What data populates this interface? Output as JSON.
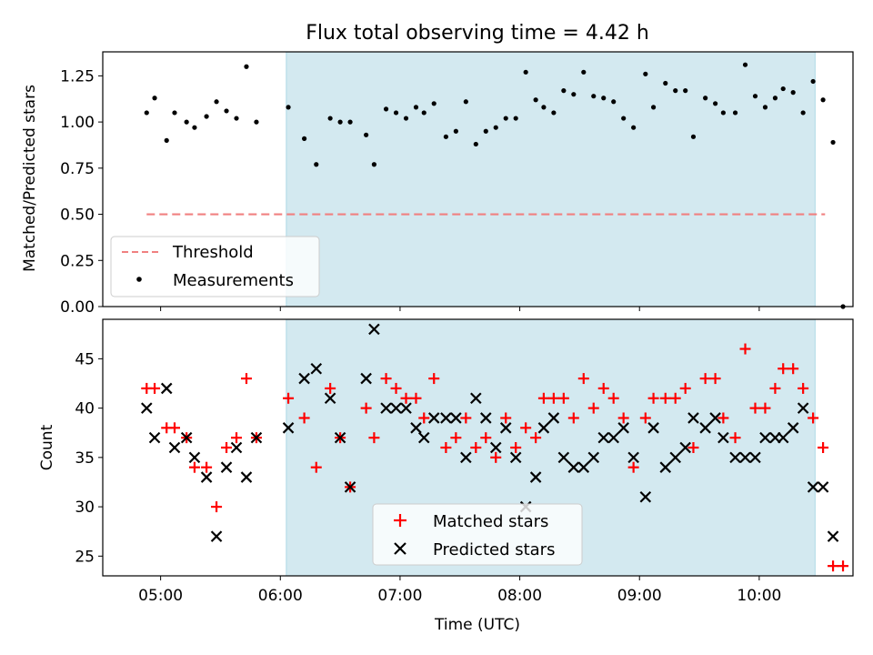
{
  "chart_data": [
    {
      "type": "scatter",
      "title": "Flux total observing time = 4.42 h",
      "ylabel": "Matched/Predicted stars",
      "xlim": [
        "04:31",
        "10:47"
      ],
      "ylim": [
        0,
        1.38
      ],
      "yticks": [
        0.0,
        0.25,
        0.5,
        0.75,
        1.0,
        1.25
      ],
      "ytick_labels": [
        "0.00",
        "0.25",
        "0.50",
        "0.75",
        "1.00",
        "1.25"
      ],
      "shaded_span": [
        "06:03",
        "10:28"
      ],
      "shade_color": "#d3e9f0",
      "legend": {
        "placement": "lower-left",
        "entries": [
          "Threshold",
          "Measurements"
        ]
      },
      "threshold": {
        "name": "Threshold",
        "value": 0.5,
        "x": [
          "04:53",
          "10:33"
        ],
        "color": "#f08080"
      },
      "series": [
        {
          "name": "Measurements",
          "color": "#000000",
          "points": [
            [
              "04:53",
              1.05
            ],
            [
              "04:57",
              1.13
            ],
            [
              "05:03",
              0.9
            ],
            [
              "05:07",
              1.05
            ],
            [
              "05:13",
              1.0
            ],
            [
              "05:17",
              0.97
            ],
            [
              "05:23",
              1.03
            ],
            [
              "05:28",
              1.11
            ],
            [
              "05:33",
              1.06
            ],
            [
              "05:38",
              1.02
            ],
            [
              "05:43",
              1.3
            ],
            [
              "05:48",
              1.0
            ],
            [
              "06:04",
              1.08
            ],
            [
              "06:12",
              0.91
            ],
            [
              "06:18",
              0.77
            ],
            [
              "06:25",
              1.02
            ],
            [
              "06:30",
              1.0
            ],
            [
              "06:35",
              1.0
            ],
            [
              "06:43",
              0.93
            ],
            [
              "06:47",
              0.77
            ],
            [
              "06:53",
              1.07
            ],
            [
              "06:58",
              1.05
            ],
            [
              "07:03",
              1.02
            ],
            [
              "07:08",
              1.08
            ],
            [
              "07:12",
              1.05
            ],
            [
              "07:17",
              1.1
            ],
            [
              "07:23",
              0.92
            ],
            [
              "07:28",
              0.95
            ],
            [
              "07:33",
              1.11
            ],
            [
              "07:38",
              0.88
            ],
            [
              "07:43",
              0.95
            ],
            [
              "07:48",
              0.97
            ],
            [
              "07:53",
              1.02
            ],
            [
              "07:58",
              1.02
            ],
            [
              "08:03",
              1.27
            ],
            [
              "08:08",
              1.12
            ],
            [
              "08:12",
              1.08
            ],
            [
              "08:17",
              1.05
            ],
            [
              "08:22",
              1.17
            ],
            [
              "08:27",
              1.15
            ],
            [
              "08:32",
              1.27
            ],
            [
              "08:37",
              1.14
            ],
            [
              "08:42",
              1.13
            ],
            [
              "08:47",
              1.11
            ],
            [
              "08:52",
              1.02
            ],
            [
              "08:57",
              0.97
            ],
            [
              "09:03",
              1.26
            ],
            [
              "09:07",
              1.08
            ],
            [
              "09:13",
              1.21
            ],
            [
              "09:18",
              1.17
            ],
            [
              "09:23",
              1.17
            ],
            [
              "09:27",
              0.92
            ],
            [
              "09:33",
              1.13
            ],
            [
              "09:38",
              1.1
            ],
            [
              "09:42",
              1.05
            ],
            [
              "09:48",
              1.05
            ],
            [
              "09:53",
              1.31
            ],
            [
              "09:58",
              1.14
            ],
            [
              "10:03",
              1.08
            ],
            [
              "10:08",
              1.13
            ],
            [
              "10:12",
              1.18
            ],
            [
              "10:17",
              1.16
            ],
            [
              "10:22",
              1.05
            ],
            [
              "10:27",
              1.22
            ],
            [
              "10:32",
              1.12
            ],
            [
              "10:37",
              0.89
            ],
            [
              "10:42",
              0.0
            ]
          ]
        }
      ]
    },
    {
      "type": "scatter",
      "xlabel": "Time (UTC)",
      "ylabel": "Count",
      "xlim": [
        "04:31",
        "10:47"
      ],
      "ylim": [
        23,
        49
      ],
      "xticks": [
        "05:00",
        "06:00",
        "07:00",
        "08:00",
        "09:00",
        "10:00"
      ],
      "xtick_labels": [
        "05:00",
        "06:00",
        "07:00",
        "08:00",
        "09:00",
        "10:00"
      ],
      "yticks": [
        25,
        30,
        35,
        40,
        45
      ],
      "ytick_labels": [
        "25",
        "30",
        "35",
        "40",
        "45"
      ],
      "shaded_span": [
        "06:03",
        "10:28"
      ],
      "shade_color": "#d3e9f0",
      "legend": {
        "placement": "lower-center",
        "entries": [
          "Matched stars",
          "Predicted stars"
        ]
      },
      "series": [
        {
          "name": "Matched stars",
          "marker": "plus",
          "color": "#ff0000",
          "points": [
            [
              "04:53",
              42
            ],
            [
              "04:57",
              42
            ],
            [
              "05:03",
              38
            ],
            [
              "05:07",
              38
            ],
            [
              "05:13",
              37
            ],
            [
              "05:17",
              34
            ],
            [
              "05:23",
              34
            ],
            [
              "05:28",
              30
            ],
            [
              "05:33",
              36
            ],
            [
              "05:38",
              37
            ],
            [
              "05:43",
              43
            ],
            [
              "05:48",
              37
            ],
            [
              "06:04",
              41
            ],
            [
              "06:12",
              39
            ],
            [
              "06:18",
              34
            ],
            [
              "06:25",
              42
            ],
            [
              "06:30",
              37
            ],
            [
              "06:35",
              32
            ],
            [
              "06:43",
              40
            ],
            [
              "06:47",
              37
            ],
            [
              "06:53",
              43
            ],
            [
              "06:58",
              42
            ],
            [
              "07:03",
              41
            ],
            [
              "07:08",
              41
            ],
            [
              "07:12",
              39
            ],
            [
              "07:17",
              43
            ],
            [
              "07:23",
              36
            ],
            [
              "07:28",
              37
            ],
            [
              "07:33",
              39
            ],
            [
              "07:38",
              36
            ],
            [
              "07:43",
              37
            ],
            [
              "07:48",
              35
            ],
            [
              "07:53",
              39
            ],
            [
              "07:58",
              36
            ],
            [
              "08:03",
              38
            ],
            [
              "08:08",
              37
            ],
            [
              "08:12",
              41
            ],
            [
              "08:17",
              41
            ],
            [
              "08:22",
              41
            ],
            [
              "08:27",
              39
            ],
            [
              "08:32",
              43
            ],
            [
              "08:37",
              40
            ],
            [
              "08:42",
              42
            ],
            [
              "08:47",
              41
            ],
            [
              "08:52",
              39
            ],
            [
              "08:57",
              34
            ],
            [
              "09:03",
              39
            ],
            [
              "09:07",
              41
            ],
            [
              "09:13",
              41
            ],
            [
              "09:18",
              41
            ],
            [
              "09:23",
              42
            ],
            [
              "09:27",
              36
            ],
            [
              "09:33",
              43
            ],
            [
              "09:38",
              43
            ],
            [
              "09:42",
              39
            ],
            [
              "09:48",
              37
            ],
            [
              "09:53",
              46
            ],
            [
              "09:58",
              40
            ],
            [
              "10:03",
              40
            ],
            [
              "10:08",
              42
            ],
            [
              "10:12",
              44
            ],
            [
              "10:17",
              44
            ],
            [
              "10:22",
              42
            ],
            [
              "10:27",
              39
            ],
            [
              "10:32",
              36
            ],
            [
              "10:37",
              24
            ],
            [
              "10:42",
              24
            ]
          ]
        },
        {
          "name": "Predicted stars",
          "marker": "x",
          "color": "#000000",
          "points": [
            [
              "04:53",
              40
            ],
            [
              "04:57",
              37
            ],
            [
              "05:03",
              42
            ],
            [
              "05:07",
              36
            ],
            [
              "05:13",
              37
            ],
            [
              "05:17",
              35
            ],
            [
              "05:23",
              33
            ],
            [
              "05:28",
              27
            ],
            [
              "05:33",
              34
            ],
            [
              "05:38",
              36
            ],
            [
              "05:43",
              33
            ],
            [
              "05:48",
              37
            ],
            [
              "06:04",
              38
            ],
            [
              "06:12",
              43
            ],
            [
              "06:18",
              44
            ],
            [
              "06:25",
              41
            ],
            [
              "06:30",
              37
            ],
            [
              "06:35",
              32
            ],
            [
              "06:43",
              43
            ],
            [
              "06:47",
              48
            ],
            [
              "06:53",
              40
            ],
            [
              "06:58",
              40
            ],
            [
              "07:03",
              40
            ],
            [
              "07:08",
              38
            ],
            [
              "07:12",
              37
            ],
            [
              "07:17",
              39
            ],
            [
              "07:23",
              39
            ],
            [
              "07:28",
              39
            ],
            [
              "07:33",
              35
            ],
            [
              "07:38",
              41
            ],
            [
              "07:43",
              39
            ],
            [
              "07:48",
              36
            ],
            [
              "07:53",
              38
            ],
            [
              "07:58",
              35
            ],
            [
              "08:03",
              30
            ],
            [
              "08:08",
              33
            ],
            [
              "08:12",
              38
            ],
            [
              "08:17",
              39
            ],
            [
              "08:22",
              35
            ],
            [
              "08:27",
              34
            ],
            [
              "08:32",
              34
            ],
            [
              "08:37",
              35
            ],
            [
              "08:42",
              37
            ],
            [
              "08:47",
              37
            ],
            [
              "08:52",
              38
            ],
            [
              "08:57",
              35
            ],
            [
              "09:03",
              31
            ],
            [
              "09:07",
              38
            ],
            [
              "09:13",
              34
            ],
            [
              "09:18",
              35
            ],
            [
              "09:23",
              36
            ],
            [
              "09:27",
              39
            ],
            [
              "09:33",
              38
            ],
            [
              "09:38",
              39
            ],
            [
              "09:42",
              37
            ],
            [
              "09:48",
              35
            ],
            [
              "09:53",
              35
            ],
            [
              "09:58",
              35
            ],
            [
              "10:03",
              37
            ],
            [
              "10:08",
              37
            ],
            [
              "10:12",
              37
            ],
            [
              "10:17",
              38
            ],
            [
              "10:22",
              40
            ],
            [
              "10:27",
              32
            ],
            [
              "10:32",
              32
            ],
            [
              "10:37",
              27
            ]
          ]
        }
      ]
    }
  ]
}
